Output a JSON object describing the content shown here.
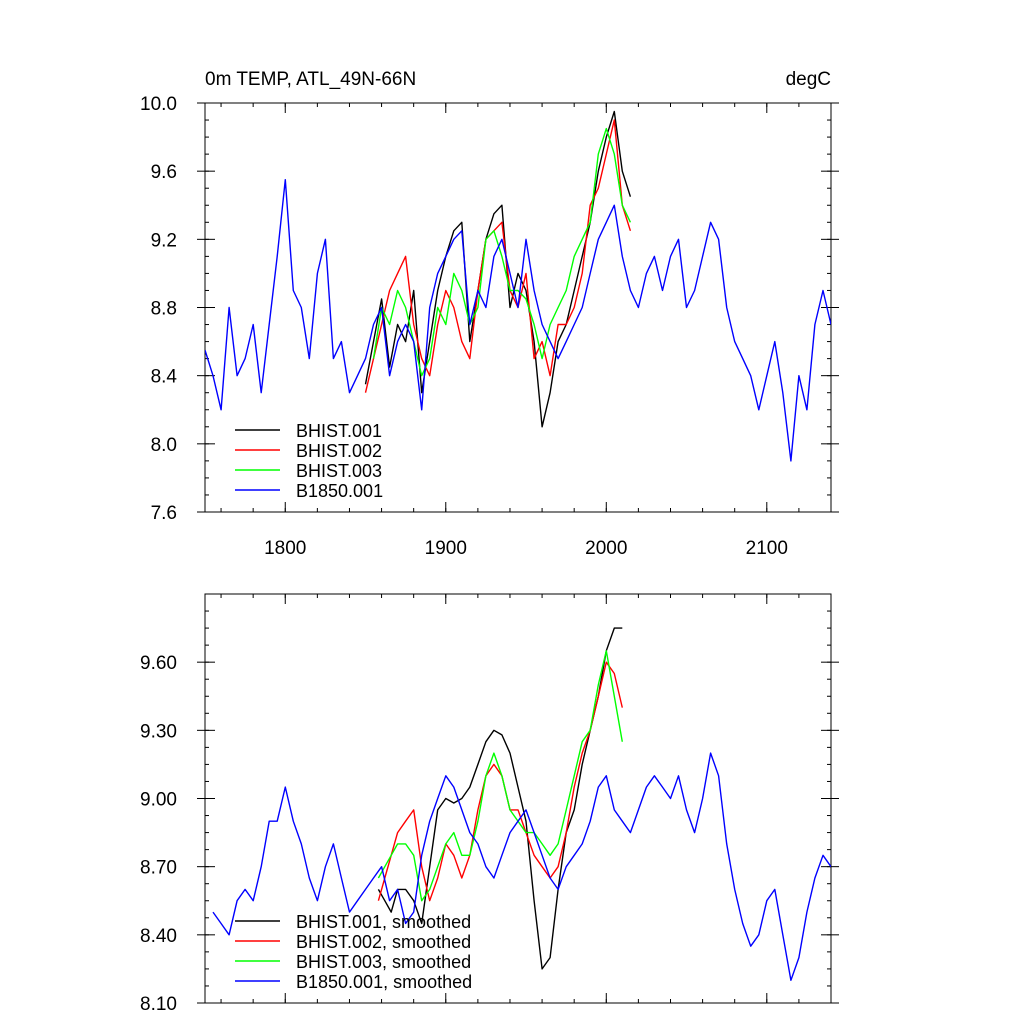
{
  "chart_data": [
    {
      "type": "line",
      "title": "0m TEMP, ATL_49N-66N",
      "units": "degC",
      "xlabel": "",
      "ylabel": "",
      "xlim": [
        1750,
        2140
      ],
      "ylim": [
        7.6,
        10.0
      ],
      "xticks": [
        1800,
        1900,
        2000,
        2100
      ],
      "xtick_labels": [
        "1800",
        "1900",
        "2000",
        "2100"
      ],
      "yticks": [
        7.6,
        8.0,
        8.4,
        8.8,
        9.2,
        9.6,
        10.0
      ],
      "ytick_labels": [
        "7.6",
        "8.0",
        "8.4",
        "8.8",
        "9.2",
        "9.6",
        "10.0"
      ],
      "legend_position": "bottom-left",
      "series": [
        {
          "name": "BHIST.001",
          "color": "#000000",
          "x": [
            1850,
            1855,
            1860,
            1865,
            1870,
            1875,
            1880,
            1885,
            1890,
            1895,
            1900,
            1905,
            1910,
            1915,
            1920,
            1925,
            1930,
            1935,
            1940,
            1945,
            1950,
            1955,
            1960,
            1965,
            1970,
            1975,
            1980,
            1985,
            1990,
            1995,
            2000,
            2005,
            2010,
            2015
          ],
          "values": [
            8.35,
            8.6,
            8.85,
            8.45,
            8.7,
            8.6,
            8.9,
            8.3,
            8.6,
            8.9,
            9.1,
            9.25,
            9.3,
            8.6,
            8.9,
            9.2,
            9.35,
            9.4,
            8.8,
            9.0,
            8.9,
            8.6,
            8.1,
            8.3,
            8.6,
            8.7,
            8.9,
            9.1,
            9.3,
            9.6,
            9.8,
            9.95,
            9.6,
            9.45
          ]
        },
        {
          "name": "BHIST.002",
          "color": "#ff0000",
          "x": [
            1850,
            1855,
            1860,
            1865,
            1870,
            1875,
            1880,
            1885,
            1890,
            1895,
            1900,
            1905,
            1910,
            1915,
            1920,
            1925,
            1930,
            1935,
            1940,
            1945,
            1950,
            1955,
            1960,
            1965,
            1970,
            1975,
            1980,
            1985,
            1990,
            1995,
            2000,
            2005,
            2010,
            2015
          ],
          "values": [
            8.3,
            8.5,
            8.7,
            8.9,
            9.0,
            9.1,
            8.7,
            8.5,
            8.4,
            8.7,
            8.9,
            8.8,
            8.6,
            8.5,
            8.9,
            9.2,
            9.25,
            9.3,
            8.9,
            8.8,
            9.0,
            8.5,
            8.6,
            8.4,
            8.7,
            8.7,
            8.8,
            9.0,
            9.4,
            9.5,
            9.7,
            9.9,
            9.4,
            9.25
          ]
        },
        {
          "name": "BHIST.003",
          "color": "#00ff00",
          "x": [
            1855,
            1860,
            1865,
            1870,
            1875,
            1880,
            1885,
            1890,
            1895,
            1900,
            1905,
            1910,
            1915,
            1920,
            1925,
            1930,
            1935,
            1940,
            1945,
            1950,
            1955,
            1960,
            1965,
            1970,
            1975,
            1980,
            1985,
            1990,
            1995,
            2000,
            2005,
            2010,
            2015
          ],
          "values": [
            8.5,
            8.8,
            8.7,
            8.9,
            8.8,
            8.6,
            8.4,
            8.5,
            8.8,
            8.7,
            9.0,
            8.9,
            8.7,
            8.8,
            9.2,
            9.25,
            9.1,
            8.9,
            8.9,
            8.85,
            8.7,
            8.5,
            8.7,
            8.8,
            8.9,
            9.1,
            9.2,
            9.3,
            9.7,
            9.85,
            9.7,
            9.4,
            9.3
          ]
        },
        {
          "name": "B1850.001",
          "color": "#0000ff",
          "x": [
            1750,
            1755,
            1760,
            1765,
            1770,
            1775,
            1780,
            1785,
            1790,
            1795,
            1800,
            1805,
            1810,
            1815,
            1820,
            1825,
            1830,
            1835,
            1840,
            1845,
            1850,
            1855,
            1860,
            1865,
            1870,
            1875,
            1880,
            1885,
            1890,
            1895,
            1900,
            1905,
            1910,
            1915,
            1920,
            1925,
            1930,
            1935,
            1940,
            1945,
            1950,
            1955,
            1960,
            1965,
            1970,
            1975,
            1980,
            1985,
            1990,
            1995,
            2000,
            2005,
            2010,
            2015,
            2020,
            2025,
            2030,
            2035,
            2040,
            2045,
            2050,
            2055,
            2060,
            2065,
            2070,
            2075,
            2080,
            2085,
            2090,
            2095,
            2100,
            2105,
            2110,
            2115,
            2120,
            2125,
            2130,
            2135,
            2140
          ],
          "values": [
            8.55,
            8.4,
            8.2,
            8.8,
            8.4,
            8.5,
            8.7,
            8.3,
            8.7,
            9.1,
            9.55,
            8.9,
            8.8,
            8.5,
            9.0,
            9.2,
            8.5,
            8.6,
            8.3,
            8.4,
            8.5,
            8.7,
            8.8,
            8.4,
            8.6,
            8.7,
            8.6,
            8.2,
            8.8,
            9.0,
            9.1,
            9.2,
            9.25,
            8.7,
            8.9,
            8.8,
            9.1,
            9.2,
            9.0,
            8.8,
            9.2,
            8.9,
            8.7,
            8.6,
            8.5,
            8.6,
            8.7,
            8.8,
            9.0,
            9.2,
            9.3,
            9.4,
            9.1,
            8.9,
            8.8,
            9.0,
            9.1,
            8.9,
            9.1,
            9.2,
            8.8,
            8.9,
            9.1,
            9.3,
            9.2,
            8.8,
            8.6,
            8.5,
            8.4,
            8.2,
            8.4,
            8.6,
            8.3,
            7.9,
            8.4,
            8.2,
            8.7,
            8.9,
            8.7
          ]
        }
      ]
    },
    {
      "type": "line",
      "title": "",
      "xlabel": "",
      "ylabel": "",
      "xlim": [
        1750,
        2140
      ],
      "ylim": [
        8.1,
        9.9
      ],
      "xticks": [
        1800,
        1900,
        2000,
        2100
      ],
      "xtick_labels": [],
      "yticks": [
        8.1,
        8.4,
        8.7,
        9.0,
        9.3,
        9.6
      ],
      "ytick_labels": [
        "8.10",
        "8.40",
        "8.70",
        "9.00",
        "9.30",
        "9.60"
      ],
      "legend_position": "bottom-left",
      "series": [
        {
          "name": "BHIST.001, smoothed",
          "color": "#000000",
          "x": [
            1858,
            1862,
            1866,
            1870,
            1875,
            1880,
            1885,
            1890,
            1895,
            1900,
            1905,
            1910,
            1915,
            1920,
            1925,
            1930,
            1935,
            1940,
            1945,
            1950,
            1955,
            1960,
            1965,
            1970,
            1975,
            1980,
            1985,
            1990,
            1995,
            2000,
            2005,
            2010
          ],
          "values": [
            8.6,
            8.55,
            8.5,
            8.6,
            8.6,
            8.55,
            8.45,
            8.7,
            8.95,
            9.0,
            8.98,
            9.0,
            9.05,
            9.15,
            9.25,
            9.3,
            9.28,
            9.2,
            9.05,
            8.9,
            8.55,
            8.25,
            8.3,
            8.6,
            8.85,
            8.95,
            9.15,
            9.3,
            9.45,
            9.65,
            9.75,
            9.75
          ]
        },
        {
          "name": "BHIST.002, smoothed",
          "color": "#ff0000",
          "x": [
            1858,
            1862,
            1866,
            1870,
            1875,
            1880,
            1885,
            1890,
            1895,
            1900,
            1905,
            1910,
            1915,
            1920,
            1925,
            1930,
            1935,
            1940,
            1945,
            1950,
            1955,
            1960,
            1965,
            1970,
            1975,
            1980,
            1985,
            1990,
            1995,
            2000,
            2005,
            2010
          ],
          "values": [
            8.55,
            8.65,
            8.75,
            8.85,
            8.9,
            8.95,
            8.7,
            8.55,
            8.65,
            8.8,
            8.75,
            8.65,
            8.75,
            8.95,
            9.1,
            9.15,
            9.1,
            8.95,
            8.95,
            8.85,
            8.75,
            8.7,
            8.65,
            8.7,
            8.85,
            9.05,
            9.2,
            9.3,
            9.45,
            9.6,
            9.55,
            9.4
          ]
        },
        {
          "name": "BHIST.003, smoothed",
          "color": "#00ff00",
          "x": [
            1858,
            1862,
            1866,
            1870,
            1875,
            1880,
            1885,
            1890,
            1895,
            1900,
            1905,
            1910,
            1915,
            1920,
            1925,
            1930,
            1935,
            1940,
            1945,
            1950,
            1955,
            1960,
            1965,
            1970,
            1975,
            1980,
            1985,
            1990,
            1995,
            2000,
            2005,
            2010
          ],
          "values": [
            8.65,
            8.7,
            8.75,
            8.8,
            8.8,
            8.75,
            8.55,
            8.6,
            8.7,
            8.8,
            8.85,
            8.75,
            8.75,
            8.9,
            9.1,
            9.2,
            9.1,
            8.95,
            8.9,
            8.85,
            8.85,
            8.8,
            8.75,
            8.8,
            8.95,
            9.1,
            9.25,
            9.3,
            9.5,
            9.65,
            9.45,
            9.25
          ]
        },
        {
          "name": "B1850.001, smoothed",
          "color": "#0000ff",
          "x": [
            1755,
            1760,
            1765,
            1770,
            1775,
            1780,
            1785,
            1790,
            1795,
            1800,
            1805,
            1810,
            1815,
            1820,
            1825,
            1830,
            1835,
            1840,
            1845,
            1850,
            1855,
            1860,
            1865,
            1870,
            1875,
            1880,
            1885,
            1890,
            1895,
            1900,
            1905,
            1910,
            1915,
            1920,
            1925,
            1930,
            1935,
            1940,
            1945,
            1950,
            1955,
            1960,
            1965,
            1970,
            1975,
            1980,
            1985,
            1990,
            1995,
            2000,
            2005,
            2010,
            2015,
            2020,
            2025,
            2030,
            2035,
            2040,
            2045,
            2050,
            2055,
            2060,
            2065,
            2070,
            2075,
            2080,
            2085,
            2090,
            2095,
            2100,
            2105,
            2110,
            2115,
            2120,
            2125,
            2130,
            2135,
            2140
          ],
          "values": [
            8.5,
            8.45,
            8.4,
            8.55,
            8.6,
            8.55,
            8.7,
            8.9,
            8.9,
            9.05,
            8.9,
            8.8,
            8.65,
            8.55,
            8.7,
            8.8,
            8.65,
            8.5,
            8.55,
            8.6,
            8.65,
            8.7,
            8.55,
            8.6,
            8.45,
            8.5,
            8.75,
            8.9,
            9.0,
            9.1,
            9.05,
            8.95,
            8.85,
            8.8,
            8.7,
            8.65,
            8.75,
            8.85,
            8.9,
            8.95,
            8.85,
            8.75,
            8.65,
            8.6,
            8.7,
            8.75,
            8.8,
            8.9,
            9.05,
            9.1,
            8.95,
            8.9,
            8.85,
            8.95,
            9.05,
            9.1,
            9.05,
            9.0,
            9.1,
            8.95,
            8.85,
            9.0,
            9.2,
            9.1,
            8.8,
            8.6,
            8.45,
            8.35,
            8.4,
            8.55,
            8.6,
            8.4,
            8.2,
            8.3,
            8.5,
            8.65,
            8.75,
            8.7
          ]
        }
      ]
    }
  ]
}
